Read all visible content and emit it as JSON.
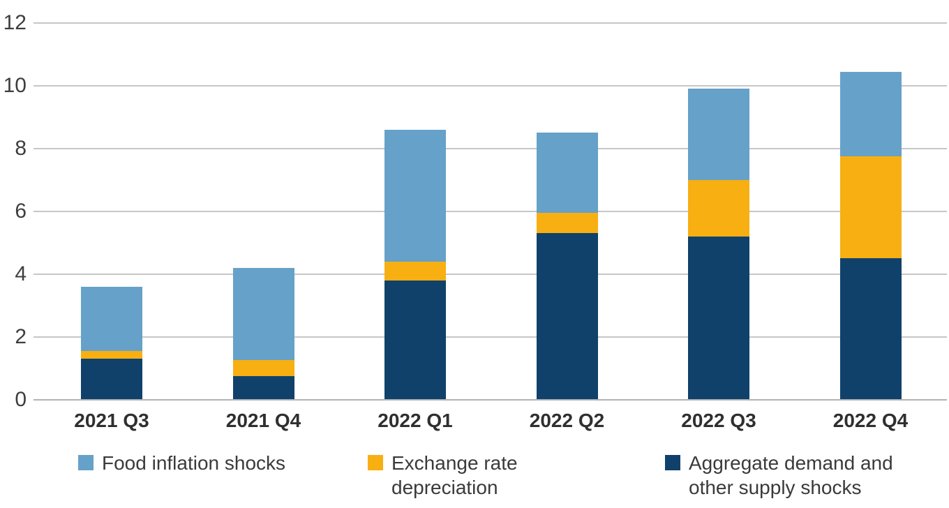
{
  "chart_data": {
    "type": "bar",
    "variant": "stacked-vertical",
    "title": "",
    "xlabel": "",
    "ylabel": "",
    "categories": [
      "2021 Q3",
      "2021 Q4",
      "2022 Q1",
      "2022 Q2",
      "2022 Q3",
      "2022 Q4"
    ],
    "series": [
      {
        "name": "Aggregate demand and other supply shocks",
        "color": "#0f416b",
        "values": [
          1.3,
          0.75,
          3.8,
          5.3,
          5.2,
          4.5
        ]
      },
      {
        "name": "Exchange rate depreciation",
        "color": "#f8af12",
        "values": [
          0.25,
          0.5,
          0.6,
          0.65,
          1.8,
          3.25
        ]
      },
      {
        "name": "Food inflation shocks",
        "color": "#66a1c9",
        "values": [
          2.05,
          2.95,
          4.2,
          2.55,
          2.9,
          2.7
        ]
      }
    ],
    "stack_order": "bottom-to-top",
    "totals": [
      3.6,
      4.2,
      8.6,
      8.5,
      9.9,
      10.45
    ],
    "ylim": [
      0,
      12
    ],
    "yticks": [
      0,
      2,
      4,
      6,
      8,
      10,
      12
    ],
    "grid": true,
    "legend_position": "bottom"
  },
  "legend": {
    "items": [
      {
        "key": "food-inflation-shocks",
        "color": "#66a1c9",
        "label": "Food inflation shocks",
        "label_lines": [
          "Food inflation shocks"
        ]
      },
      {
        "key": "exchange-rate-depreciation",
        "color": "#f8af12",
        "label": "Exchange rate depreciation",
        "label_lines": [
          "Exchange rate",
          "depreciation"
        ]
      },
      {
        "key": "aggregate-demand-other-supply-shocks",
        "color": "#0f416b",
        "label": "Aggregate demand and other supply shocks",
        "label_lines": [
          "Aggregate demand and",
          "other supply shocks"
        ]
      }
    ]
  },
  "colors": {
    "background": "#ffffff",
    "gridline": "#c6c6c6",
    "baseline": "#b3b3b3",
    "y_tick_text": "#3e3e3e",
    "x_tick_text": "#2f2f2f",
    "legend_text": "#3a3a3a"
  }
}
